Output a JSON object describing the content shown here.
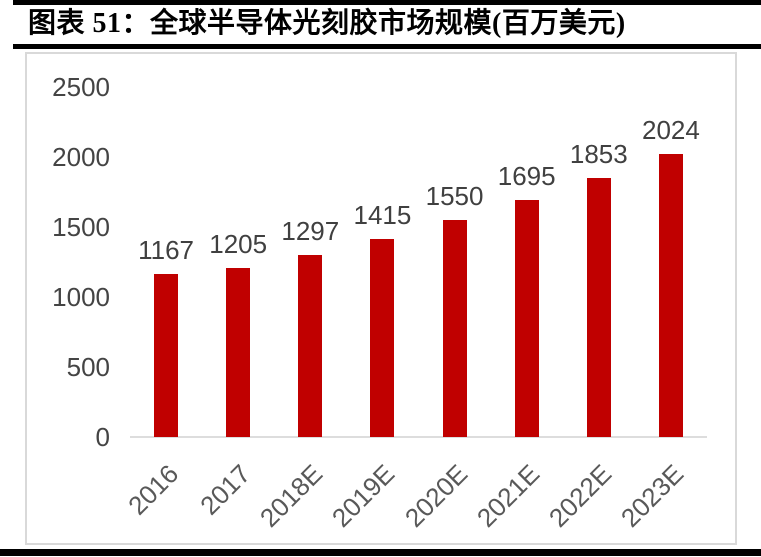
{
  "figure": {
    "title": "图表 51：全球半导体光刻胶市场规模(百万美元)"
  },
  "chart_data": {
    "type": "bar",
    "title": "全球半导体光刻胶市场规模(百万美元)",
    "categories": [
      "2016",
      "2017",
      "2018E",
      "2019E",
      "2020E",
      "2021E",
      "2022E",
      "2023E"
    ],
    "values": [
      1167,
      1205,
      1297,
      1415,
      1550,
      1695,
      1853,
      2024
    ],
    "xlabel": "",
    "ylabel": "",
    "ylim": [
      0,
      2500
    ],
    "yticks": [
      0,
      500,
      1000,
      1500,
      2000,
      2500
    ],
    "grid": false,
    "legend": "none",
    "data_labels": true,
    "x_tick_rotation": -45,
    "bar_color": "#c00000",
    "value_label_color": "#404040",
    "axis_text_color": "#444444",
    "axis_line_color": "#dddddd",
    "frame_color": "#d9d9d9",
    "rule_color": "#000000"
  }
}
